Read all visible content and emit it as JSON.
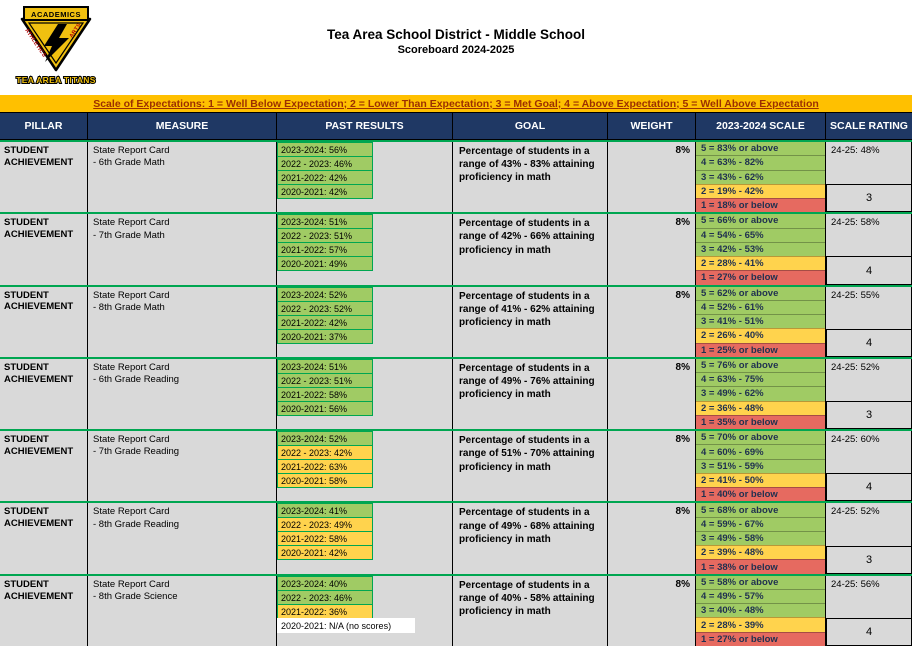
{
  "header": {
    "title": "Tea Area School District - Middle School",
    "subtitle": "Scoreboard 2024-2025",
    "logo": {
      "academics": "ACADEMICS",
      "athletics": "ATHLETICS",
      "arts": "ARTS",
      "titans": "TEA AREA TITANS"
    }
  },
  "scale_banner": "Scale of Expectations: 1 = Well Below Expectation; 2 = Lower Than Expectation; 3 = Met Goal; 4 = Above Expectation; 5 = Well Above Expectation",
  "columns": [
    "PILLAR",
    "MEASURE",
    "PAST RESULTS",
    "GOAL",
    "WEIGHT",
    "2023-2024 SCALE",
    "SCALE RATING"
  ],
  "colors": {
    "cell_bg": "#D9D9D9",
    "top_bg": "#FFFFFF",
    "banner_bg": "#FFC000",
    "banner_text": "#9C3000",
    "header_bg": "#1F3864",
    "header_text": "#FFFFFF",
    "green": "#A0CB64",
    "yellow": "#FFD34D",
    "red": "#E66A60",
    "grid_green": "#00A651",
    "scale_text": "#1F3050",
    "logo_yellow": "#F0C010"
  },
  "rows": [
    {
      "pillar": "STUDENT ACHIEVEMENT",
      "measure": [
        "State Report Card",
        "- 6th Grade Math"
      ],
      "past_results": [
        {
          "label": "2023-2024: 56%",
          "color": "green"
        },
        {
          "label": "2022 - 2023: 46%",
          "color": "green"
        },
        {
          "label": "2021-2022: 42%",
          "color": "green"
        },
        {
          "label": "2020-2021: 42%",
          "color": "green"
        }
      ],
      "goal": "Percentage of students in a range of 43% - 83% attaining proficiency in math",
      "weight": "8%",
      "scale": [
        {
          "label": "5 = 83% or above",
          "color": "green"
        },
        {
          "label": "4 = 63% - 82%",
          "color": "green"
        },
        {
          "label": "3 = 43% - 62%",
          "color": "green"
        },
        {
          "label": "2 = 19% - 42%",
          "color": "yellow"
        },
        {
          "label": "1 = 18% or below",
          "color": "red"
        }
      ],
      "current": "24-25: 48%",
      "rating": "3"
    },
    {
      "pillar": "STUDENT ACHIEVEMENT",
      "measure": [
        "State Report Card",
        "- 7th Grade Math"
      ],
      "past_results": [
        {
          "label": "2023-2024: 51%",
          "color": "green"
        },
        {
          "label": "2022 - 2023: 51%",
          "color": "green"
        },
        {
          "label": "2021-2022: 57%",
          "color": "green"
        },
        {
          "label": "2020-2021: 49%",
          "color": "green"
        }
      ],
      "goal": "Percentage of students in a range of 42% - 66% attaining proficiency in math",
      "weight": "8%",
      "scale": [
        {
          "label": "5 = 66% or above",
          "color": "green"
        },
        {
          "label": "4 = 54% - 65%",
          "color": "green"
        },
        {
          "label": "3 = 42% - 53%",
          "color": "green"
        },
        {
          "label": "2 = 28% - 41%",
          "color": "yellow"
        },
        {
          "label": "1 = 27% or below",
          "color": "red"
        }
      ],
      "current": "24-25: 58%",
      "rating": "4"
    },
    {
      "pillar": "STUDENT ACHIEVEMENT",
      "measure": [
        "State Report Card",
        "- 8th Grade Math"
      ],
      "past_results": [
        {
          "label": "2023-2024: 52%",
          "color": "green"
        },
        {
          "label": "2022 - 2023: 52%",
          "color": "green"
        },
        {
          "label": "2021-2022: 42%",
          "color": "green"
        },
        {
          "label": "2020-2021: 37%",
          "color": "green"
        }
      ],
      "goal": "Percentage of students in a range of 41% - 62% attaining proficiency in math",
      "weight": "8%",
      "scale": [
        {
          "label": "5 = 62% or above",
          "color": "green"
        },
        {
          "label": "4 = 52% - 61%",
          "color": "green"
        },
        {
          "label": "3 = 41% - 51%",
          "color": "green"
        },
        {
          "label": "2 = 26% - 40%",
          "color": "yellow"
        },
        {
          "label": "1 = 25% or below",
          "color": "red"
        }
      ],
      "current": "24-25: 55%",
      "rating": "4"
    },
    {
      "pillar": "STUDENT ACHIEVEMENT",
      "measure": [
        "State Report Card",
        "- 6th Grade Reading"
      ],
      "past_results": [
        {
          "label": "2023-2024: 51%",
          "color": "green"
        },
        {
          "label": "2022 - 2023: 51%",
          "color": "green"
        },
        {
          "label": "2021-2022: 58%",
          "color": "green"
        },
        {
          "label": "2020-2021: 56%",
          "color": "green"
        }
      ],
      "goal": "Percentage of students in a range of 49% - 76% attaining proficiency in math",
      "weight": "8%",
      "scale": [
        {
          "label": "5 = 76% or above",
          "color": "green"
        },
        {
          "label": "4 = 63% - 75%",
          "color": "green"
        },
        {
          "label": "3 = 49% - 62%",
          "color": "green"
        },
        {
          "label": "2 = 36% - 48%",
          "color": "yellow"
        },
        {
          "label": "1 = 35% or below",
          "color": "red"
        }
      ],
      "current": "24-25: 52%",
      "rating": "3"
    },
    {
      "pillar": "STUDENT ACHIEVEMENT",
      "measure": [
        "State Report Card",
        "- 7th Grade Reading"
      ],
      "past_results": [
        {
          "label": "2023-2024: 52%",
          "color": "green"
        },
        {
          "label": "2022 - 2023: 42%",
          "color": "yellow"
        },
        {
          "label": "2021-2022: 63%",
          "color": "yellow"
        },
        {
          "label": "2020-2021: 58%",
          "color": "yellow"
        }
      ],
      "goal": "Percentage of students in a range of 51% - 70% attaining proficiency in math",
      "weight": "8%",
      "scale": [
        {
          "label": "5 = 70% or above",
          "color": "green"
        },
        {
          "label": "4 = 60% - 69%",
          "color": "green"
        },
        {
          "label": "3 = 51% - 59%",
          "color": "green"
        },
        {
          "label": "2 = 41% - 50%",
          "color": "yellow"
        },
        {
          "label": "1 = 40% or below",
          "color": "red"
        }
      ],
      "current": "24-25: 60%",
      "rating": "4"
    },
    {
      "pillar": "STUDENT ACHIEVEMENT",
      "measure": [
        "State Report Card",
        "- 8th Grade Reading"
      ],
      "past_results": [
        {
          "label": "2023-2024: 41%",
          "color": "green"
        },
        {
          "label": "2022 - 2023: 49%",
          "color": "yellow"
        },
        {
          "label": "2021-2022: 58%",
          "color": "yellow"
        },
        {
          "label": "2020-2021: 42%",
          "color": "yellow"
        }
      ],
      "goal": "Percentage of students in a range of 49% - 68% attaining proficiency in math",
      "weight": "8%",
      "scale": [
        {
          "label": "5 = 68% or above",
          "color": "green"
        },
        {
          "label": "4 = 59% - 67%",
          "color": "green"
        },
        {
          "label": "3 = 49% - 58%",
          "color": "green"
        },
        {
          "label": "2 = 39% - 48%",
          "color": "yellow"
        },
        {
          "label": "1 = 38% or below",
          "color": "red"
        }
      ],
      "current": "24-25: 52%",
      "rating": "3"
    },
    {
      "pillar": "STUDENT ACHIEVEMENT",
      "measure": [
        "State Report Card",
        "- 8th Grade Science"
      ],
      "past_results": [
        {
          "label": "2023-2024: 40%",
          "color": "green"
        },
        {
          "label": "2022 - 2023: 46%",
          "color": "green"
        },
        {
          "label": "2021-2022: 36%",
          "color": "yellow"
        },
        {
          "label": "2020-2021: N/A (no scores)",
          "color": "none"
        }
      ],
      "goal": "Percentage of students in a range of 40% - 58% attaining proficiency in math",
      "weight": "8%",
      "scale": [
        {
          "label": "5 = 58% or above",
          "color": "green"
        },
        {
          "label": "4 = 49% - 57%",
          "color": "green"
        },
        {
          "label": "3 = 40% - 48%",
          "color": "green"
        },
        {
          "label": "2 = 28% - 39%",
          "color": "yellow"
        },
        {
          "label": "1 = 27% or below",
          "color": "red"
        }
      ],
      "current": "24-25: 56%",
      "rating": "4"
    }
  ]
}
